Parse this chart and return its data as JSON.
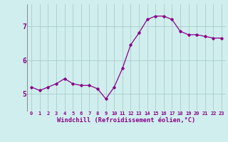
{
  "x": [
    0,
    1,
    2,
    3,
    4,
    5,
    6,
    7,
    8,
    9,
    10,
    11,
    12,
    13,
    14,
    15,
    16,
    17,
    18,
    19,
    20,
    21,
    22,
    23
  ],
  "y": [
    5.2,
    5.1,
    5.2,
    5.3,
    5.45,
    5.3,
    5.25,
    5.25,
    5.15,
    4.85,
    5.2,
    5.75,
    6.45,
    6.8,
    7.2,
    7.3,
    7.3,
    7.2,
    6.85,
    6.75,
    6.75,
    6.7,
    6.65,
    6.65
  ],
  "line_color": "#880088",
  "marker": "D",
  "marker_size": 1.8,
  "bg_color": "#d0eeee",
  "grid_color": "#aacccc",
  "xlabel": "Windchill (Refroidissement éolien,°C)",
  "xlabel_color": "#880088",
  "tick_color": "#880088",
  "ytick_labels": [
    "5",
    "6",
    "7"
  ],
  "yticks": [
    5,
    6,
    7
  ],
  "xtick_labels": [
    "0",
    "1",
    "2",
    "3",
    "4",
    "5",
    "6",
    "7",
    "8",
    "9",
    "10",
    "11",
    "12",
    "13",
    "14",
    "15",
    "16",
    "17",
    "18",
    "19",
    "20",
    "21",
    "22",
    "23"
  ],
  "ylim": [
    4.5,
    7.65
  ],
  "xlim": [
    -0.5,
    23.5
  ]
}
